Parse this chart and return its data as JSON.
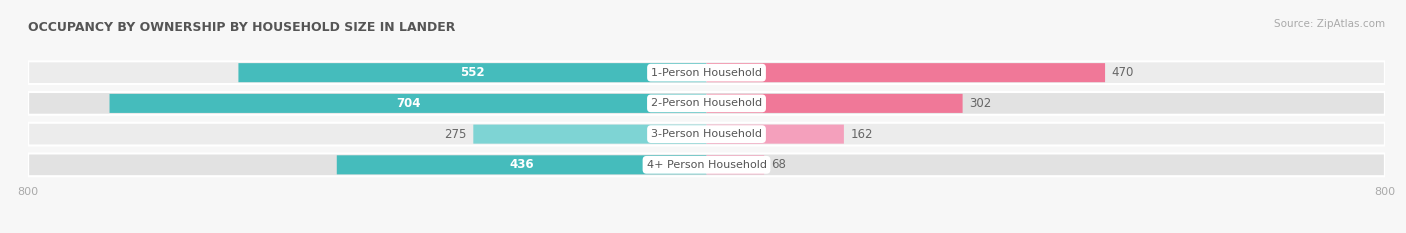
{
  "title": "OCCUPANCY BY OWNERSHIP BY HOUSEHOLD SIZE IN LANDER",
  "source": "Source: ZipAtlas.com",
  "categories": [
    "1-Person Household",
    "2-Person Household",
    "3-Person Household",
    "4+ Person Household"
  ],
  "owner_values": [
    552,
    704,
    275,
    436
  ],
  "renter_values": [
    470,
    302,
    162,
    68
  ],
  "owner_color": "#45BCBC",
  "renter_color": "#F07898",
  "owner_color_light": "#7ED4D4",
  "renter_color_light": "#F4A0BC",
  "owner_label_inside_color": "#ffffff",
  "owner_label_outside_color": "#666666",
  "renter_label_color": "#666666",
  "cat_label_color": "#555555",
  "max_val": 800,
  "bg_color": "#f7f7f7",
  "row_bg_color": "#e8e8e8",
  "row_sep_color": "#ffffff",
  "center_label_bg": "#ffffff",
  "axis_tick_color": "#aaaaaa",
  "axis_label_val": 800,
  "figsize": [
    14.06,
    2.33
  ],
  "dpi": 100,
  "title_color": "#555555",
  "source_color": "#aaaaaa"
}
